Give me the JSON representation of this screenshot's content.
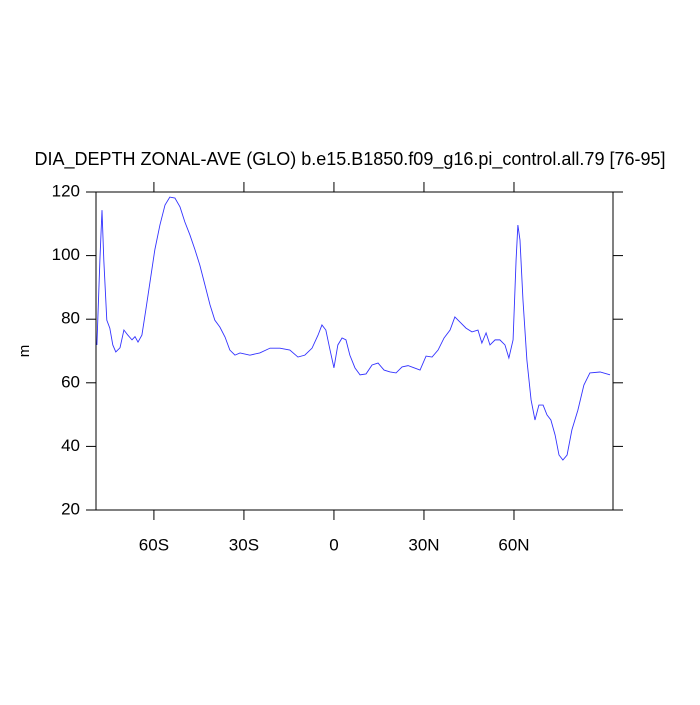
{
  "chart_data": {
    "type": "line",
    "title": "DIA_DEPTH ZONAL-AVE (GLO) b.e15.B1850.f09_g16.pi_control.all.79 [76-95]",
    "ylabel": "m",
    "x": [
      -79,
      -78,
      -77.3,
      -76.7,
      -75.7,
      -74.7,
      -73.7,
      -72.7,
      -71.3,
      -70,
      -68.7,
      -67.3,
      -66.3,
      -65.3,
      -64,
      -62.7,
      -61.3,
      -59.7,
      -58,
      -56.3,
      -54.7,
      -53,
      -51.3,
      -49.7,
      -48,
      -46.3,
      -44.7,
      -43,
      -41.3,
      -39.7,
      -38,
      -36.3,
      -34.7,
      -33,
      -31.3,
      -28,
      -24.7,
      -21.3,
      -18,
      -14.7,
      -12,
      -9.7,
      -7.3,
      -5.3,
      -4,
      -2.7,
      -1.3,
      0,
      1.3,
      2.7,
      4,
      5.3,
      7,
      8.7,
      10.7,
      12.7,
      14.7,
      16.7,
      18.7,
      20.7,
      22.7,
      24.7,
      26.7,
      28.7,
      30.7,
      32.7,
      34.7,
      36.7,
      38.7,
      40.3,
      42,
      44,
      46,
      48,
      49.3,
      50.7,
      52,
      53.7,
      55.3,
      57,
      58.3,
      59.7,
      60.7,
      61.3,
      62,
      63,
      64.3,
      65.7,
      67,
      68.3,
      69.7,
      71,
      72.3,
      73.7,
      75,
      76.3,
      77.7,
      79.3,
      81.3,
      83.3,
      85.3,
      88.7,
      92
    ],
    "series": [
      {
        "color": "#3333ff",
        "values": [
          71.9,
          98.6,
          114.3,
          98.6,
          79.7,
          77.2,
          71.9,
          69.7,
          71,
          76.6,
          75,
          73.5,
          74.5,
          72.8,
          75,
          82.9,
          91.7,
          101.8,
          109.6,
          115.9,
          118.4,
          118.1,
          115.3,
          110.6,
          106.5,
          101.8,
          97,
          90.8,
          84.5,
          79.7,
          77.5,
          74.4,
          70.3,
          68.7,
          69.4,
          68.7,
          69.4,
          70.9,
          70.9,
          70.3,
          68.1,
          68.7,
          70.9,
          75,
          78.2,
          76.6,
          70.3,
          64.7,
          71.9,
          74.1,
          73.5,
          68.7,
          64.7,
          62.5,
          62.8,
          65.6,
          66.2,
          64,
          63.4,
          63.1,
          65,
          65.4,
          64.7,
          64,
          68.4,
          68.1,
          70.3,
          74.1,
          76.6,
          80.7,
          79.1,
          77.2,
          76,
          76.6,
          72.5,
          75.7,
          71.9,
          73.5,
          73.5,
          71.9,
          67.8,
          73.5,
          98.6,
          109.6,
          104.9,
          86,
          67.2,
          54.6,
          48.3,
          53,
          53,
          49.9,
          48.3,
          43.6,
          37.3,
          35.7,
          37.3,
          45.2,
          51.4,
          59.3,
          63.1,
          63.4,
          62.5
        ]
      }
    ],
    "xlim": [
      -79.3,
      93
    ],
    "xticks": [
      {
        "value": -60,
        "label": "60S"
      },
      {
        "value": -30,
        "label": "30S"
      },
      0,
      {
        "value": 30,
        "label": "30N"
      },
      {
        "value": 60,
        "label": "60N"
      }
    ],
    "ylim": [
      20,
      120
    ],
    "yticks": [
      20,
      40,
      60,
      80,
      100,
      120
    ]
  }
}
